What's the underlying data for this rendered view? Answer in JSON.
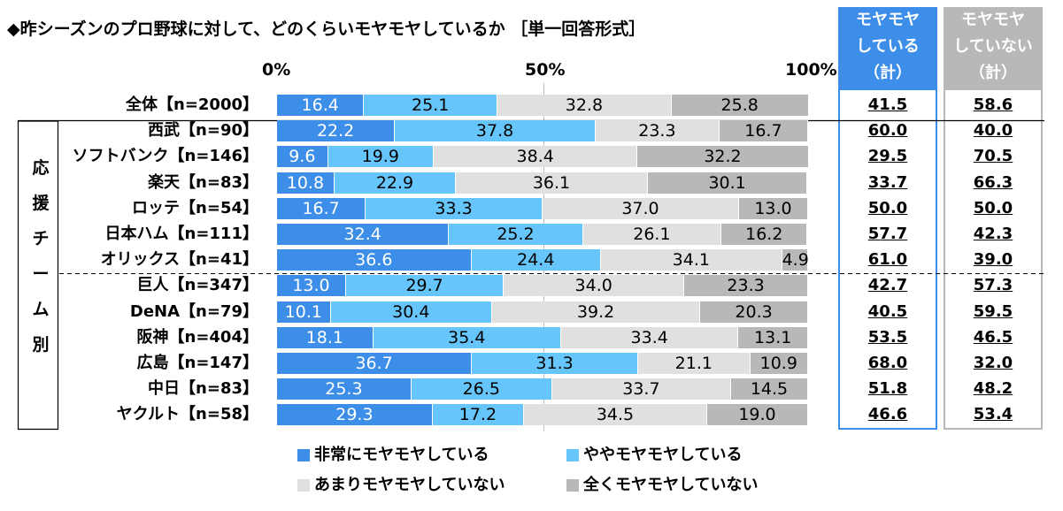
{
  "chart_data": {
    "type": "bar",
    "title": "◆昨シーズンのプロ野球に対して、どのくらいモヤモヤしているか ［単一回答形式］",
    "x_ticks": [
      "0%",
      "50%",
      "100%"
    ],
    "xlim": [
      0,
      100
    ],
    "group_label": "応援チーム別",
    "group_label_chars": [
      "応",
      "援",
      "チ",
      "ー",
      "ム",
      "別"
    ],
    "categories": [
      "全体【n=2000】",
      "西武【n=90】",
      "ソフトバンク【n=146】",
      "楽天【n=83】",
      "ロッテ【n=54】",
      "日本ハム【n=111】",
      "オリックス【n=41】",
      "巨人【n=347】",
      "DeNA【n=79】",
      "阪神【n=404】",
      "広島【n=147】",
      "中日【n=83】",
      "ヤクルト【n=58】"
    ],
    "series": [
      {
        "name": "非常にモヤモヤしている",
        "color": "#3d8ee8",
        "values": [
          16.4,
          22.2,
          9.6,
          10.8,
          16.7,
          32.4,
          36.6,
          13.0,
          10.1,
          18.1,
          36.7,
          25.3,
          29.3
        ]
      },
      {
        "name": "ややモヤモヤしている",
        "color": "#66c6fb",
        "values": [
          25.1,
          37.8,
          19.9,
          22.9,
          33.3,
          25.2,
          24.4,
          29.7,
          30.4,
          35.4,
          31.3,
          26.5,
          17.2
        ]
      },
      {
        "name": "あまりモヤモヤしていない",
        "color": "#e0e0e0",
        "values": [
          32.8,
          23.3,
          38.4,
          36.1,
          37.0,
          26.1,
          34.1,
          34.0,
          39.2,
          33.4,
          21.1,
          33.7,
          34.5
        ]
      },
      {
        "name": "全くモヤモヤしていない",
        "color": "#b8b8b8",
        "values": [
          25.8,
          16.7,
          32.2,
          30.1,
          13.0,
          16.2,
          4.9,
          23.3,
          20.3,
          13.1,
          10.9,
          14.5,
          19.0
        ]
      }
    ],
    "value_labels": [
      [
        "16.4",
        "25.1",
        "32.8",
        "25.8"
      ],
      [
        "22.2",
        "37.8",
        "23.3",
        "16.7"
      ],
      [
        "9.6",
        "19.9",
        "38.4",
        "32.2"
      ],
      [
        "10.8",
        "22.9",
        "36.1",
        "30.1"
      ],
      [
        "16.7",
        "33.3",
        "37.0",
        "13.0"
      ],
      [
        "32.4",
        "25.2",
        "26.1",
        "16.2"
      ],
      [
        "36.6",
        "24.4",
        "34.1",
        "4.9"
      ],
      [
        "13.0",
        "29.7",
        "34.0",
        "23.3"
      ],
      [
        "10.1",
        "30.4",
        "39.2",
        "20.3"
      ],
      [
        "18.1",
        "35.4",
        "33.4",
        "13.1"
      ],
      [
        "36.7",
        "31.3",
        "21.1",
        "10.9"
      ],
      [
        "25.3",
        "26.5",
        "33.7",
        "14.5"
      ],
      [
        "29.3",
        "17.2",
        "34.5",
        "19.0"
      ]
    ],
    "summary_columns": [
      {
        "header_lines": [
          "モヤモヤ",
          "している",
          "（計）"
        ],
        "color": "#3d8ee8",
        "values": [
          "41.5",
          "60.0",
          "29.5",
          "33.7",
          "50.0",
          "57.7",
          "61.0",
          "42.7",
          "40.5",
          "53.5",
          "68.0",
          "51.8",
          "46.6"
        ]
      },
      {
        "header_lines": [
          "モヤモヤ",
          "していない",
          "（計）"
        ],
        "color": "#b8b8b8",
        "values": [
          "58.6",
          "40.0",
          "70.5",
          "66.3",
          "50.0",
          "42.3",
          "39.0",
          "57.3",
          "59.5",
          "46.5",
          "32.0",
          "48.2",
          "53.4"
        ]
      }
    ],
    "legend": [
      "非常にモヤモヤしている",
      "ややモヤモヤしている",
      "あまりモヤモヤしていない",
      "全くモヤモヤしていない"
    ],
    "legend_position": "bottom"
  }
}
